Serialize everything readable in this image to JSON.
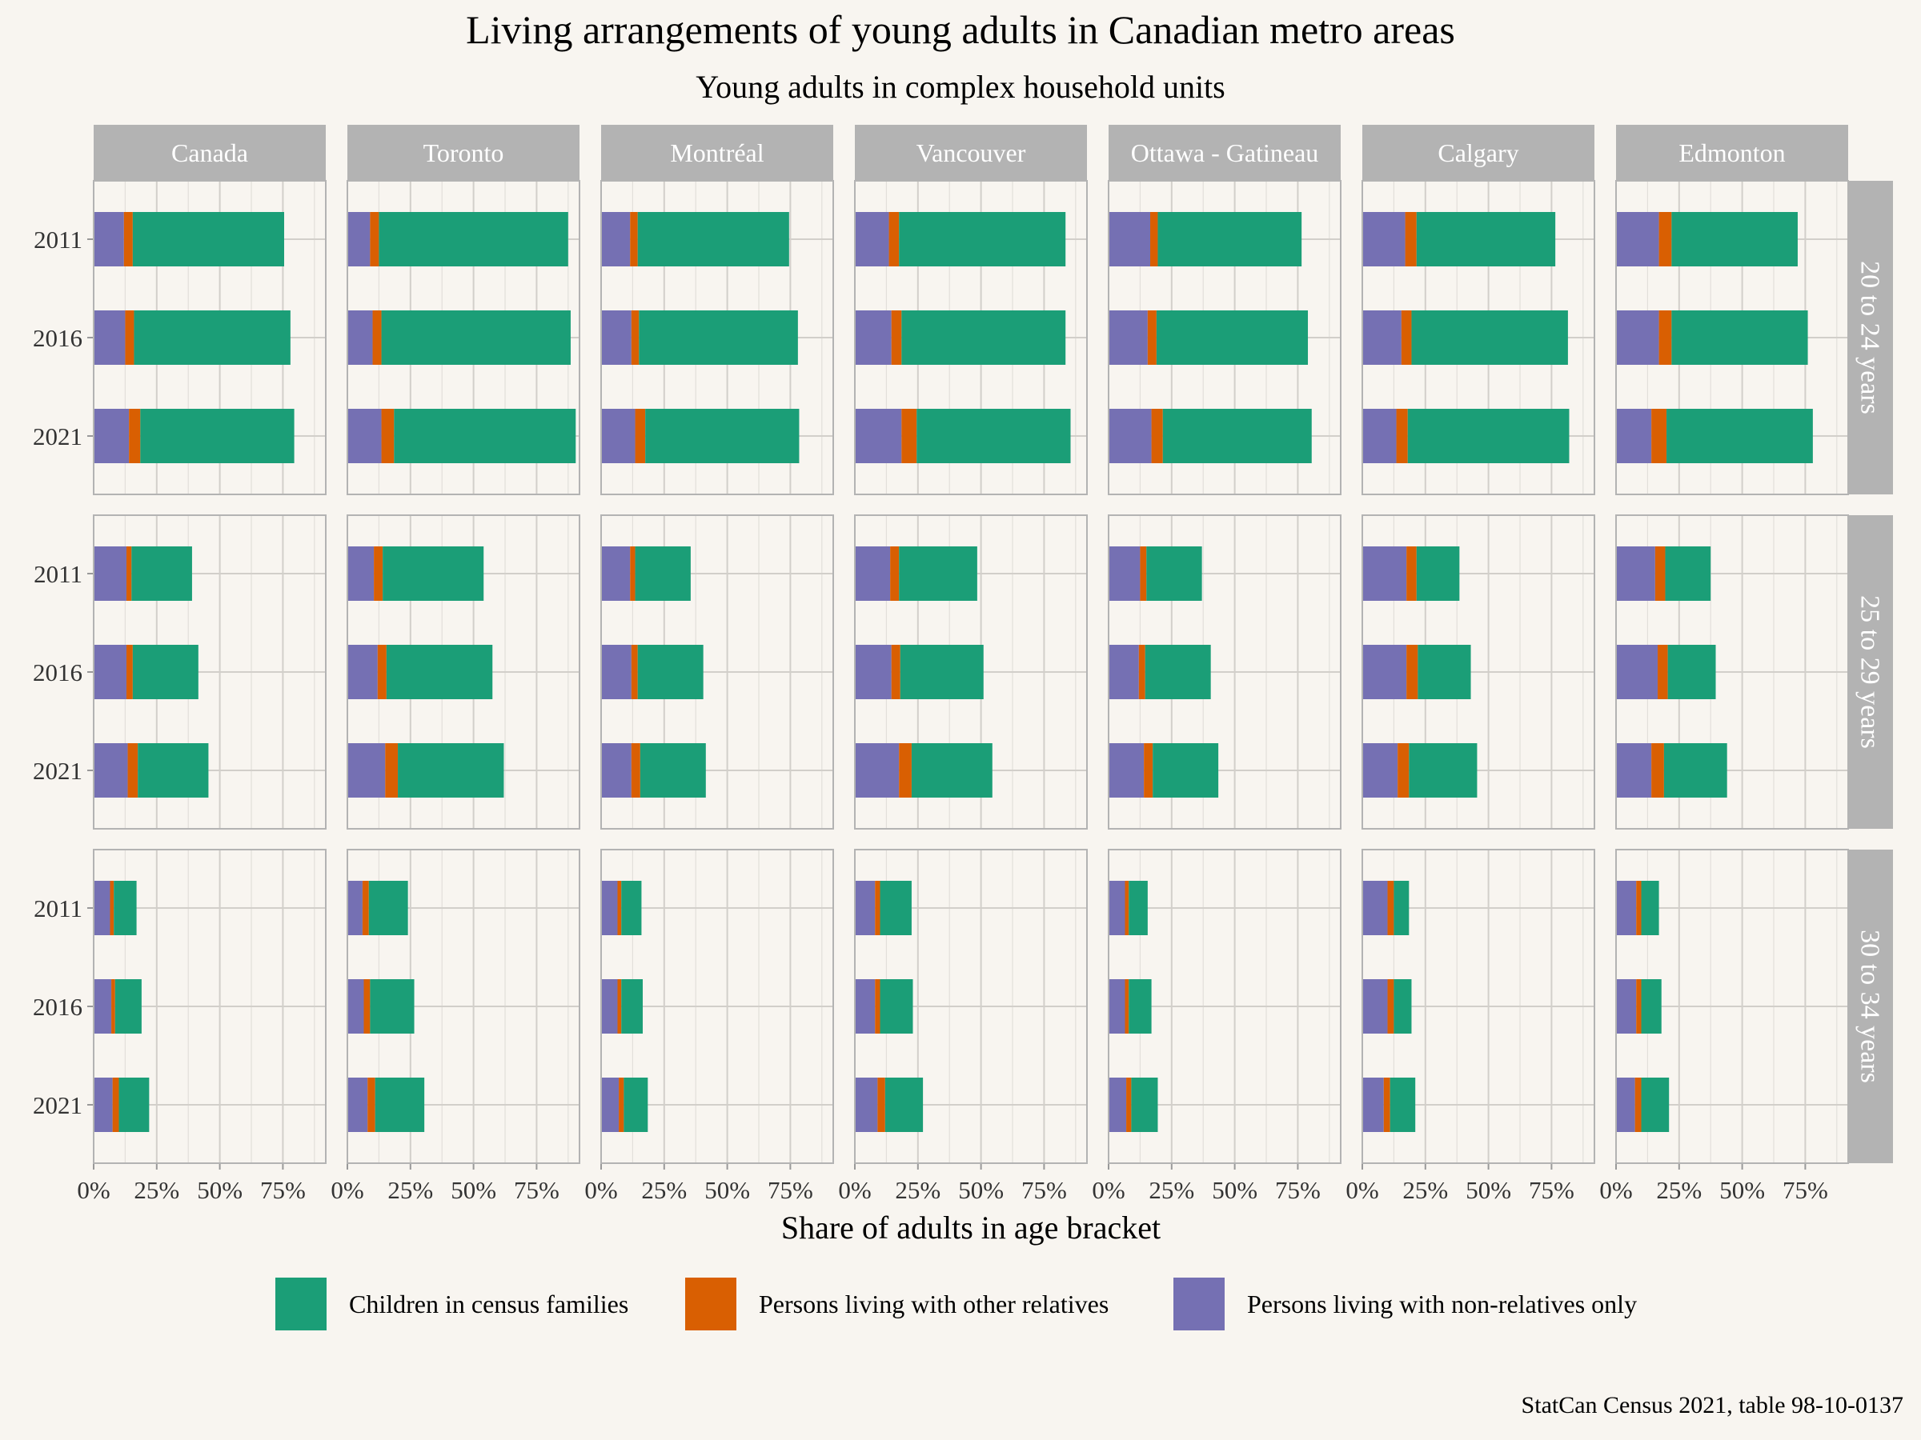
{
  "chart_data": {
    "type": "bar",
    "orientation": "horizontal",
    "stacked": true,
    "title": "Living arrangements of young adults in Canadian metro areas",
    "subtitle": "Young adults in complex household units",
    "xlabel": "Share of adults in age bracket",
    "xlim": [
      0,
      0.92
    ],
    "x_ticks": [
      0,
      0.25,
      0.5,
      0.75
    ],
    "x_tick_labels": [
      "0%",
      "25%",
      "50%",
      "75%"
    ],
    "grid": true,
    "legend_position": "bottom",
    "caption": "StatCan Census 2021, table 98-10-0137",
    "facet_columns": [
      "Canada",
      "Toronto",
      "Montréal",
      "Vancouver",
      "Ottawa - Gatineau",
      "Calgary",
      "Edmonton"
    ],
    "facet_rows": [
      "20 to 24 years",
      "25 to 29 years",
      "30 to 34 years"
    ],
    "categories": [
      "2011",
      "2016",
      "2021"
    ],
    "series": [
      {
        "name": "Persons living with non-relatives only",
        "color": "#7570b3"
      },
      {
        "name": "Persons living with other relatives",
        "color": "#d95f02"
      },
      {
        "name": "Children in census families",
        "color": "#1b9e77"
      }
    ],
    "legend_order": [
      "Children in census families",
      "Persons living with other relatives",
      "Persons living with non-relatives only"
    ],
    "panels": [
      {
        "column": "Canada",
        "row": "20 to 24 years",
        "values": [
          [
            0.12,
            0.035,
            0.6
          ],
          [
            0.125,
            0.035,
            0.62
          ],
          [
            0.14,
            0.045,
            0.61
          ]
        ]
      },
      {
        "column": "Toronto",
        "row": "20 to 24 years",
        "values": [
          [
            0.09,
            0.035,
            0.75
          ],
          [
            0.1,
            0.035,
            0.75
          ],
          [
            0.135,
            0.05,
            0.72
          ]
        ]
      },
      {
        "column": "Montréal",
        "row": "20 to 24 years",
        "values": [
          [
            0.115,
            0.03,
            0.6
          ],
          [
            0.12,
            0.03,
            0.63
          ],
          [
            0.135,
            0.04,
            0.61
          ]
        ]
      },
      {
        "column": "Vancouver",
        "row": "20 to 24 years",
        "values": [
          [
            0.135,
            0.04,
            0.66
          ],
          [
            0.145,
            0.04,
            0.65
          ],
          [
            0.185,
            0.06,
            0.61
          ]
        ]
      },
      {
        "column": "Ottawa - Gatineau",
        "row": "20 to 24 years",
        "values": [
          [
            0.165,
            0.03,
            0.57
          ],
          [
            0.155,
            0.035,
            0.6
          ],
          [
            0.17,
            0.045,
            0.59
          ]
        ]
      },
      {
        "column": "Calgary",
        "row": "20 to 24 years",
        "values": [
          [
            0.17,
            0.045,
            0.55
          ],
          [
            0.155,
            0.04,
            0.62
          ],
          [
            0.135,
            0.045,
            0.64
          ]
        ]
      },
      {
        "column": "Edmonton",
        "row": "20 to 24 years",
        "values": [
          [
            0.17,
            0.05,
            0.5
          ],
          [
            0.17,
            0.05,
            0.54
          ],
          [
            0.14,
            0.06,
            0.58
          ]
        ]
      },
      {
        "column": "Canada",
        "row": "25 to 29 years",
        "values": [
          [
            0.13,
            0.02,
            0.24
          ],
          [
            0.13,
            0.025,
            0.26
          ],
          [
            0.135,
            0.04,
            0.28
          ]
        ]
      },
      {
        "column": "Toronto",
        "row": "25 to 29 years",
        "values": [
          [
            0.105,
            0.035,
            0.4
          ],
          [
            0.12,
            0.035,
            0.42
          ],
          [
            0.15,
            0.05,
            0.42
          ]
        ]
      },
      {
        "column": "Montréal",
        "row": "25 to 29 years",
        "values": [
          [
            0.115,
            0.02,
            0.22
          ],
          [
            0.12,
            0.025,
            0.26
          ],
          [
            0.12,
            0.035,
            0.26
          ]
        ]
      },
      {
        "column": "Vancouver",
        "row": "25 to 29 years",
        "values": [
          [
            0.14,
            0.035,
            0.31
          ],
          [
            0.145,
            0.035,
            0.33
          ],
          [
            0.175,
            0.05,
            0.32
          ]
        ]
      },
      {
        "column": "Ottawa - Gatineau",
        "row": "25 to 29 years",
        "values": [
          [
            0.125,
            0.025,
            0.22
          ],
          [
            0.12,
            0.025,
            0.26
          ],
          [
            0.14,
            0.035,
            0.26
          ]
        ]
      },
      {
        "column": "Calgary",
        "row": "25 to 29 years",
        "values": [
          [
            0.175,
            0.04,
            0.17
          ],
          [
            0.175,
            0.045,
            0.21
          ],
          [
            0.14,
            0.045,
            0.27
          ]
        ]
      },
      {
        "column": "Edmonton",
        "row": "25 to 29 years",
        "values": [
          [
            0.155,
            0.04,
            0.18
          ],
          [
            0.165,
            0.04,
            0.19
          ],
          [
            0.14,
            0.05,
            0.25
          ]
        ]
      },
      {
        "column": "Canada",
        "row": "30 to 34 years",
        "values": [
          [
            0.065,
            0.015,
            0.09
          ],
          [
            0.07,
            0.015,
            0.105
          ],
          [
            0.075,
            0.025,
            0.12
          ]
        ]
      },
      {
        "column": "Toronto",
        "row": "30 to 34 years",
        "values": [
          [
            0.06,
            0.025,
            0.155
          ],
          [
            0.065,
            0.025,
            0.175
          ],
          [
            0.08,
            0.03,
            0.195
          ]
        ]
      },
      {
        "column": "Montréal",
        "row": "30 to 34 years",
        "values": [
          [
            0.065,
            0.015,
            0.08
          ],
          [
            0.065,
            0.015,
            0.085
          ],
          [
            0.07,
            0.02,
            0.095
          ]
        ]
      },
      {
        "column": "Vancouver",
        "row": "30 to 34 years",
        "values": [
          [
            0.08,
            0.02,
            0.125
          ],
          [
            0.08,
            0.02,
            0.13
          ],
          [
            0.09,
            0.03,
            0.15
          ]
        ]
      },
      {
        "column": "Ottawa - Gatineau",
        "row": "30 to 34 years",
        "values": [
          [
            0.065,
            0.015,
            0.075
          ],
          [
            0.065,
            0.015,
            0.09
          ],
          [
            0.07,
            0.02,
            0.105
          ]
        ]
      },
      {
        "column": "Calgary",
        "row": "30 to 34 years",
        "values": [
          [
            0.1,
            0.025,
            0.06
          ],
          [
            0.1,
            0.025,
            0.07
          ],
          [
            0.085,
            0.025,
            0.1
          ]
        ]
      },
      {
        "column": "Edmonton",
        "row": "30 to 34 years",
        "values": [
          [
            0.08,
            0.02,
            0.07
          ],
          [
            0.08,
            0.02,
            0.08
          ],
          [
            0.075,
            0.025,
            0.11
          ]
        ]
      }
    ]
  }
}
